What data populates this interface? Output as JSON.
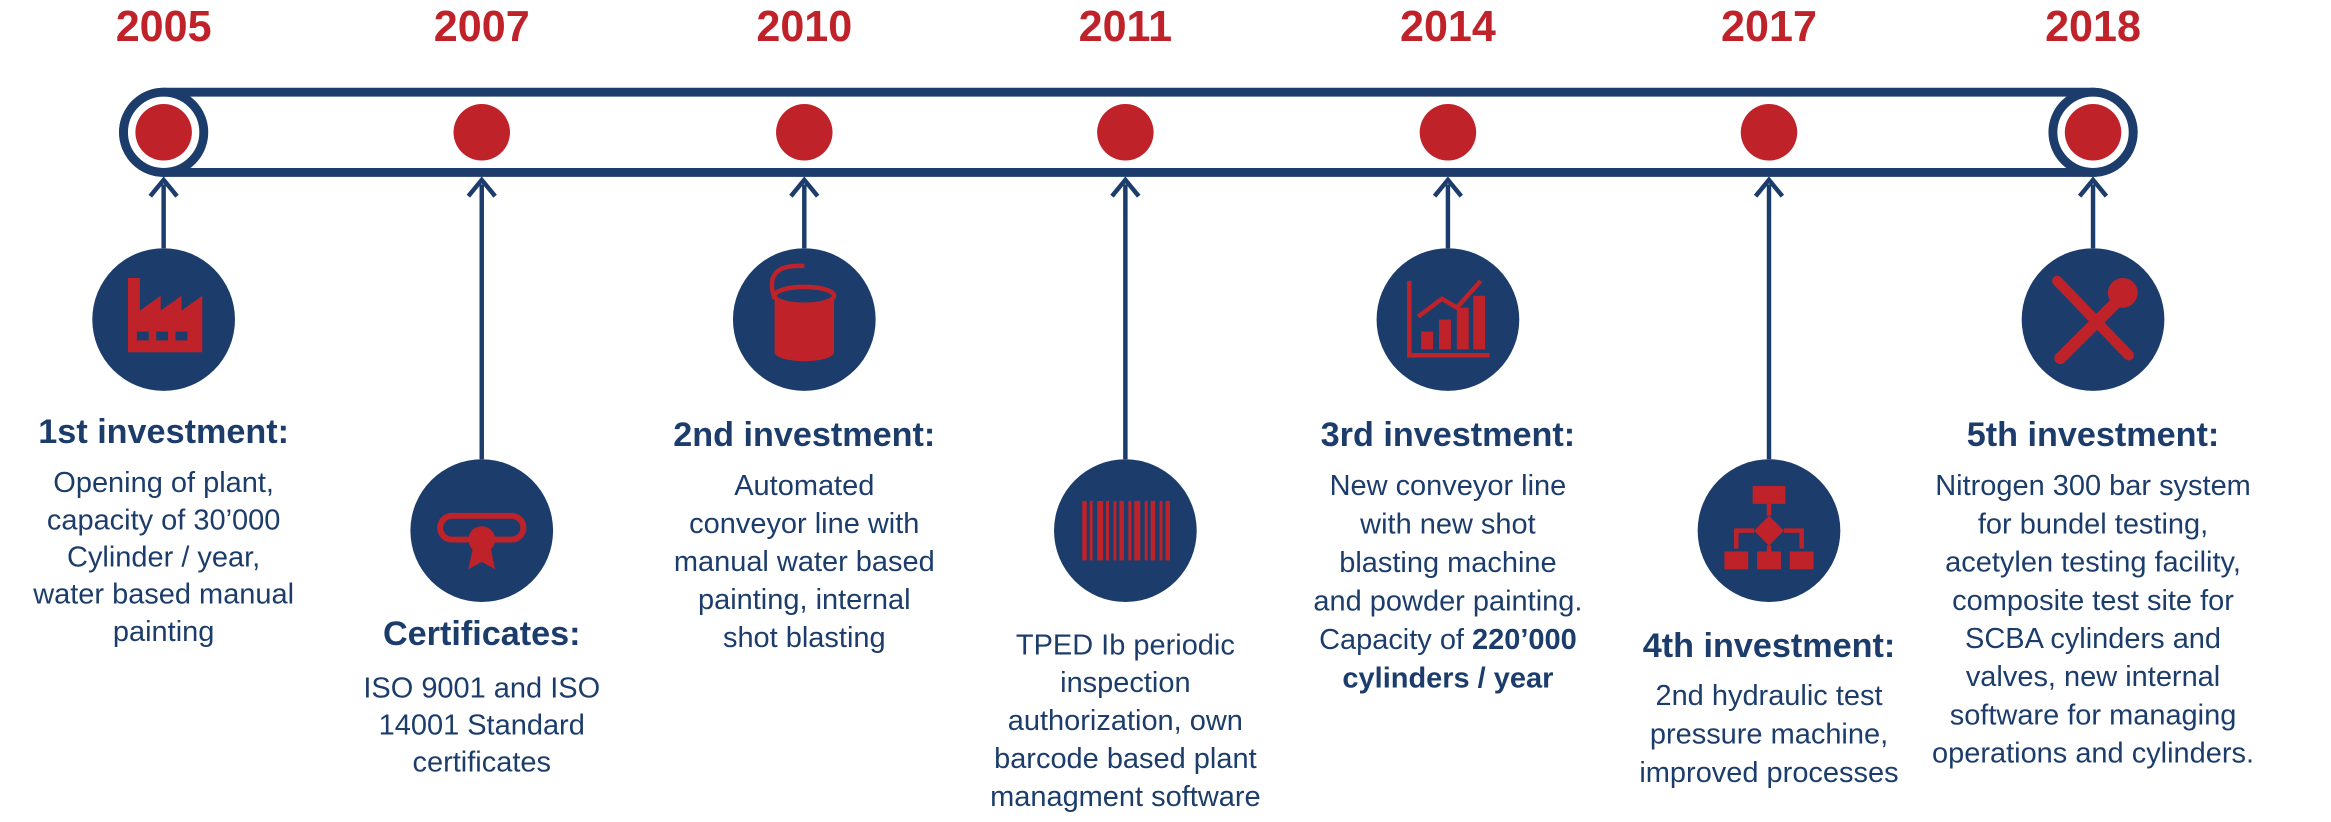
{
  "events": [
    {
      "year": "2005",
      "title": "1st investment:",
      "lines": [
        "Opening of plant,",
        "capacity of 30’000",
        "Cylinder / year,",
        "water based manual",
        "painting"
      ]
    },
    {
      "year": "2007",
      "title": "Certificates:",
      "lines": [
        "ISO 9001 and ISO",
        "14001 Standard",
        "certificates"
      ]
    },
    {
      "year": "2010",
      "title": "2nd investment:",
      "lines": [
        "Automated",
        "conveyor line with",
        "manual water based",
        "painting, internal",
        "shot blasting"
      ]
    },
    {
      "year": "2011",
      "lines": [
        "TPED Ib periodic",
        "inspection",
        "authorization, own",
        "barcode based plant",
        "managment software"
      ]
    },
    {
      "year": "2014",
      "title": "3rd investment:",
      "lines": [
        "New conveyor line",
        "with new shot",
        "blasting machine",
        "and powder painting.",
        {
          "text": "Capacity of ",
          "bold": "220’000"
        },
        {
          "bold": "cylinders / year"
        }
      ]
    },
    {
      "year": "2017",
      "title": "4th investment:",
      "lines": [
        "2nd hydraulic test",
        "pressure machine,",
        "improved processes"
      ]
    },
    {
      "year": "2018",
      "title": "5th investment:",
      "lines": [
        "Nitrogen 300 bar system",
        "for bundel testing,",
        "acetylen testing facility,",
        "composite test site for",
        "SCBA cylinders and",
        "valves, new internal",
        "software for managing",
        "operations and cylinders."
      ]
    }
  ]
}
